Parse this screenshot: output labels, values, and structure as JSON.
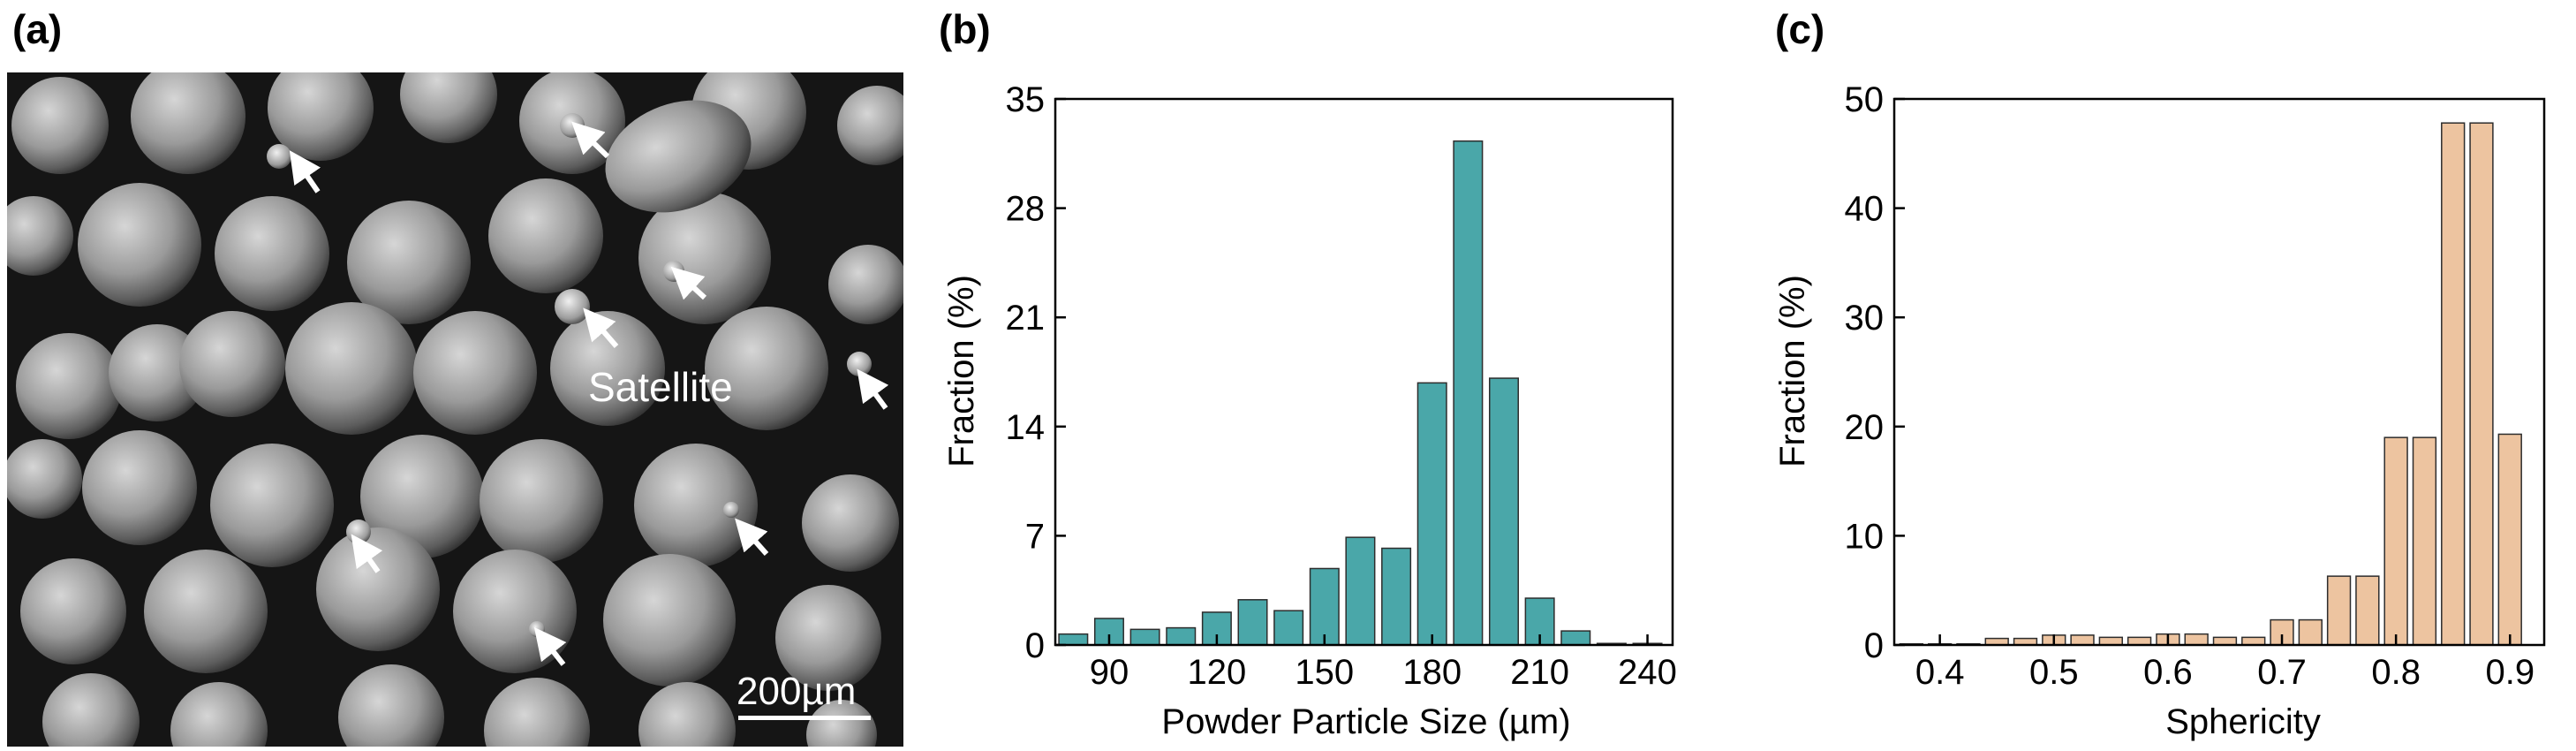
{
  "panels": {
    "a": {
      "label": "(a)"
    },
    "b": {
      "label": "(b)"
    },
    "c": {
      "label": "(c)"
    }
  },
  "sem": {
    "annotation": "Satellite",
    "scale_bar": "200µm"
  },
  "chart_data": [
    {
      "type": "bar",
      "panel": "(b)",
      "xlabel": "Powder Particle Size (µm)",
      "ylabel": "Fraction (%)",
      "x": [
        80,
        90,
        100,
        110,
        120,
        130,
        140,
        150,
        160,
        170,
        180,
        190,
        200,
        210,
        220,
        230,
        240
      ],
      "values": [
        0.7,
        1.7,
        1.0,
        1.1,
        2.1,
        2.9,
        2.2,
        4.9,
        6.9,
        6.2,
        16.8,
        32.3,
        17.1,
        3.0,
        0.9,
        0.1,
        0.1
      ],
      "xticks": [
        90,
        120,
        150,
        180,
        210,
        240
      ],
      "yticks": [
        0,
        7,
        14,
        21,
        28,
        35
      ],
      "xlim": [
        75,
        247
      ],
      "ylim": [
        0,
        35
      ],
      "bar_color": "#4aa7a9"
    },
    {
      "type": "bar",
      "panel": "(c)",
      "xlabel": "Sphericity",
      "ylabel": "Fraction (%)",
      "x": [
        0.375,
        0.4,
        0.425,
        0.45,
        0.475,
        0.5,
        0.525,
        0.55,
        0.575,
        0.6,
        0.625,
        0.65,
        0.675,
        0.7,
        0.725,
        0.75,
        0.775,
        0.8,
        0.825,
        0.85,
        0.875,
        0.9
      ],
      "values": [
        0.1,
        0.1,
        0.1,
        0.6,
        0.6,
        0.9,
        0.9,
        0.7,
        0.7,
        1.0,
        1.0,
        0.7,
        0.7,
        2.3,
        2.3,
        6.3,
        6.3,
        19.0,
        19.0,
        47.8,
        47.8,
        19.3
      ],
      "xticks": [
        0.4,
        0.5,
        0.6,
        0.7,
        0.8,
        0.9
      ],
      "yticks": [
        0,
        10,
        20,
        30,
        40,
        50
      ],
      "xlim": [
        0.36,
        0.93
      ],
      "ylim": [
        0,
        50
      ],
      "bar_color": "#edc4a0"
    }
  ]
}
